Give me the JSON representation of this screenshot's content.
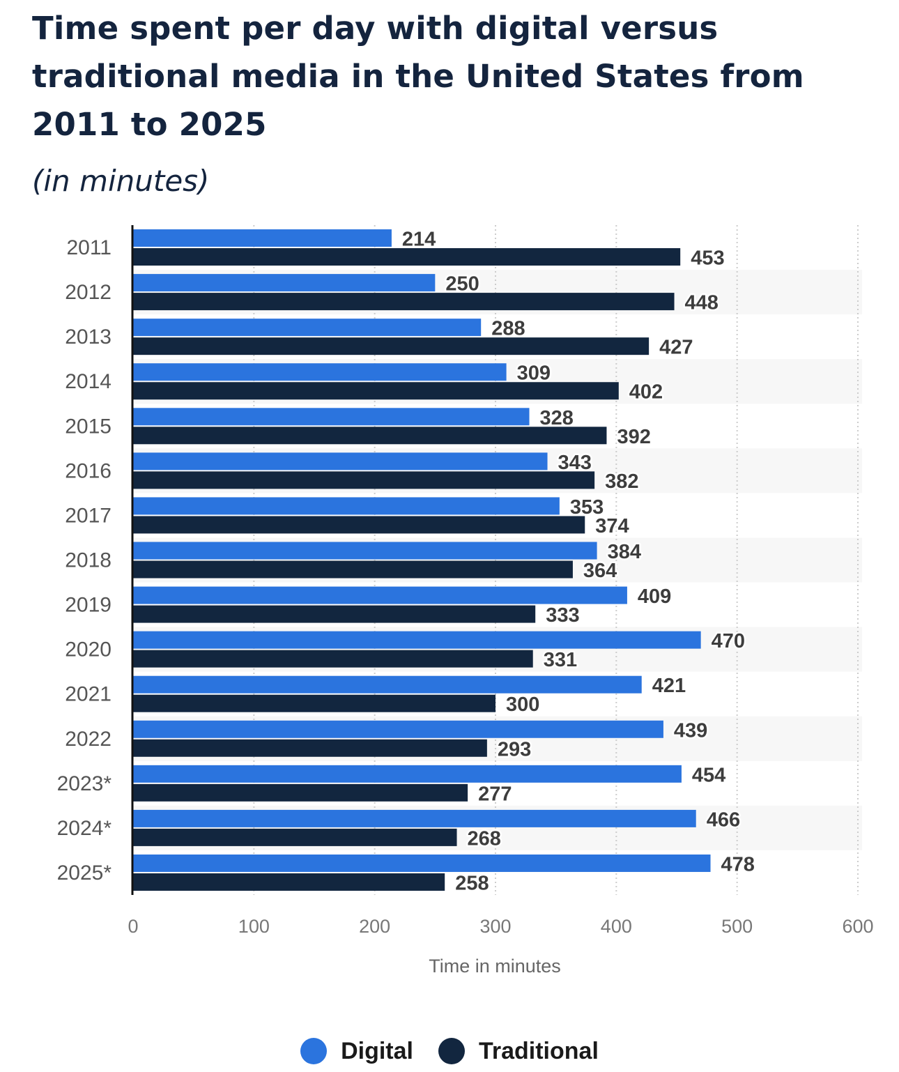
{
  "title": "Time spent per day with digital versus traditional media in the United States from 2011 to 2025",
  "subtitle": "(in minutes)",
  "colors": {
    "digital": "#2b74de",
    "traditional": "#12263f",
    "axis_text": "#555555",
    "value_text": "#3d3d3d",
    "band": "#f7f7f7",
    "grid": "#cccccc"
  },
  "chart_data": {
    "type": "bar",
    "orientation": "horizontal",
    "categories": [
      "2011",
      "2012",
      "2013",
      "2014",
      "2015",
      "2016",
      "2017",
      "2018",
      "2019",
      "2020",
      "2021",
      "2022",
      "2023*",
      "2024*",
      "2025*"
    ],
    "series": [
      {
        "name": "Digital",
        "color": "#2b74de",
        "values": [
          214,
          250,
          288,
          309,
          328,
          343,
          353,
          384,
          409,
          470,
          421,
          439,
          454,
          466,
          478
        ]
      },
      {
        "name": "Traditional",
        "color": "#12263f",
        "values": [
          453,
          448,
          427,
          402,
          392,
          382,
          374,
          364,
          333,
          331,
          300,
          293,
          277,
          268,
          258
        ]
      }
    ],
    "xlabel": "Time in minutes",
    "ylabel": "",
    "xlim": [
      0,
      600
    ],
    "xticks": [
      0,
      100,
      200,
      300,
      400,
      500,
      600
    ],
    "grid": "vertical dotted",
    "legend": "bottom-center"
  }
}
